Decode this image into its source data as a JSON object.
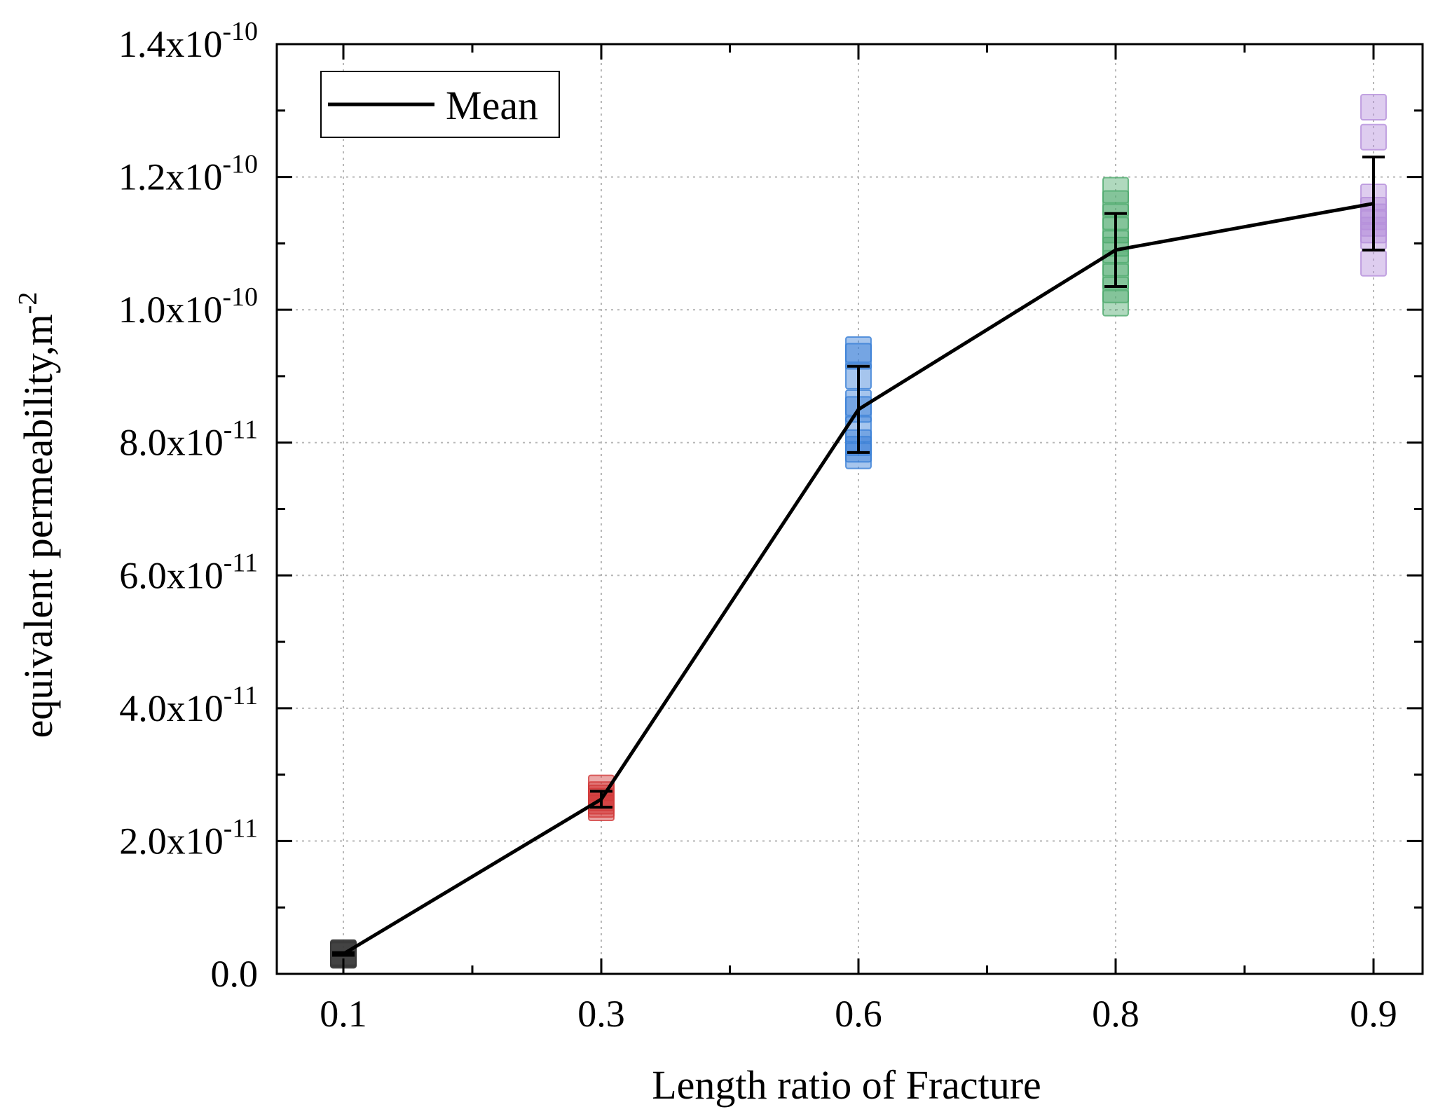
{
  "chart_data": {
    "type": "scatter",
    "xlabel": "Length ratio of Fracture",
    "ylabel": "equivalent permeability,m",
    "ylabel_sup": "-2",
    "categories": [
      "0.1",
      "0.3",
      "0.6",
      "0.8",
      "0.9"
    ],
    "y_ticks": [
      {
        "value": 0,
        "base": "0.0",
        "exp": ""
      },
      {
        "value": 2e-11,
        "base": "2.0x10",
        "exp": "-11"
      },
      {
        "value": 4e-11,
        "base": "4.0x10",
        "exp": "-11"
      },
      {
        "value": 6e-11,
        "base": "6.0x10",
        "exp": "-11"
      },
      {
        "value": 8e-11,
        "base": "8.0x10",
        "exp": "-11"
      },
      {
        "value": 1e-10,
        "base": "1.0x10",
        "exp": "-10"
      },
      {
        "value": 1.2e-10,
        "base": "1.2x10",
        "exp": "-10"
      },
      {
        "value": 1.4e-10,
        "base": "1.4x10",
        "exp": "-10"
      }
    ],
    "ylim": [
      0,
      1.4e-10
    ],
    "grid": true,
    "legend": {
      "position": "top-left",
      "label": "Mean"
    },
    "groups": [
      {
        "x": "0.1",
        "color": "#3a3a3a",
        "samples": [
          2.8e-12,
          3e-12,
          3.2e-12,
          2.9e-12,
          3.1e-12
        ],
        "mean": 3e-12,
        "error": 2e-13
      },
      {
        "x": "0.3",
        "color": "#d23c3c",
        "samples": [
          2.5e-11,
          2.6e-11,
          2.7e-11,
          2.8e-11,
          2.55e-11,
          2.65e-11
        ],
        "mean": 2.63e-11,
        "error": 1.2e-12
      },
      {
        "x": "0.6",
        "color": "#3a7fd6",
        "samples": [
          7.8e-11,
          7.9e-11,
          8e-11,
          8.2e-11,
          8.5e-11,
          8.6e-11,
          9e-11,
          9.3e-11,
          9.4e-11
        ],
        "mean": 8.5e-11,
        "error": 6.5e-12
      },
      {
        "x": "0.8",
        "color": "#4faa6e",
        "samples": [
          1.01e-10,
          1.03e-10,
          1.05e-10,
          1.07e-10,
          1.09e-10,
          1.1e-10,
          1.12e-10,
          1.14e-10,
          1.16e-10,
          1.18e-10
        ],
        "mean": 1.09e-10,
        "error": 5.5e-12
      },
      {
        "x": "0.9",
        "color": "#b590db",
        "samples": [
          1.07e-10,
          1.11e-10,
          1.12e-10,
          1.13e-10,
          1.14e-10,
          1.15e-10,
          1.17e-10,
          1.26e-10,
          1.305e-10
        ],
        "mean": 1.16e-10,
        "error": 7e-12
      }
    ]
  }
}
